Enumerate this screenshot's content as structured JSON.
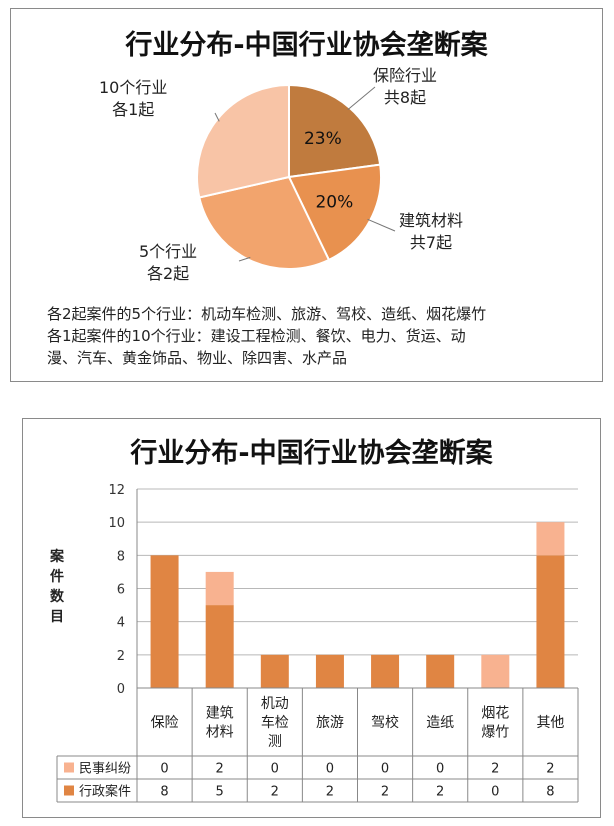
{
  "pie_title": "行业分布-中国行业协会垄断案",
  "bar_title": "行业分布-中国行业协会垄断案",
  "pie_labels": {
    "insurance": [
      "保险行业",
      "共8起"
    ],
    "construction": [
      "建筑材料",
      "共7起"
    ],
    "five": [
      "5个行业",
      "各2起"
    ],
    "ten": [
      "10个行业",
      "各1起"
    ]
  },
  "notes": [
    "各2起案件的5个行业：机动车检测、旅游、驾校、造纸、烟花爆竹",
    "各1起案件的10个行业：建设工程检测、餐饮、电力、货运、动",
    "漫、汽车、黄金饰品、物业、除四害、水产品"
  ],
  "bar_ylabel_chars": [
    "案",
    "件",
    "数",
    "目"
  ],
  "colors": {
    "pie_insurance": "#C07B3E",
    "pie_construction": "#E8914F",
    "pie_five": "#F2A46D",
    "pie_ten": "#F8C4A6",
    "bar_admin": "#E08543",
    "bar_civil": "#F8B290",
    "grid": "#B8B8B8"
  },
  "chart_data": [
    {
      "type": "pie",
      "title": "行业分布-中国行业协会垄断案",
      "slices": [
        {
          "label": "保险行业 共8起",
          "value": 8,
          "percent_label": "23%"
        },
        {
          "label": "建筑材料 共7起",
          "value": 7,
          "percent_label": "20%"
        },
        {
          "label": "5个行业 各2起",
          "value": 10,
          "percent_label": ""
        },
        {
          "label": "10个行业 各1起",
          "value": 10,
          "percent_label": ""
        }
      ]
    },
    {
      "type": "bar",
      "stacked": true,
      "title": "行业分布-中国行业协会垄断案",
      "ylabel": "案件数目",
      "ylim": [
        0,
        12
      ],
      "yticks": [
        0,
        2,
        4,
        6,
        8,
        10,
        12
      ],
      "categories": [
        "保险",
        "建筑材料",
        "机动车检测",
        "旅游",
        "驾校",
        "造纸",
        "烟花爆竹",
        "其他"
      ],
      "category_lines": [
        [
          "保险"
        ],
        [
          "建筑",
          "材料"
        ],
        [
          "机动",
          "车检",
          "测"
        ],
        [
          "旅游"
        ],
        [
          "驾校"
        ],
        [
          "造纸"
        ],
        [
          "烟花",
          "爆竹"
        ],
        [
          "其他"
        ]
      ],
      "series": [
        {
          "name": "民事纠纷",
          "values": [
            0,
            2,
            0,
            0,
            0,
            0,
            2,
            2
          ]
        },
        {
          "name": "行政案件",
          "values": [
            8,
            5,
            2,
            2,
            2,
            2,
            0,
            8
          ]
        }
      ]
    }
  ]
}
